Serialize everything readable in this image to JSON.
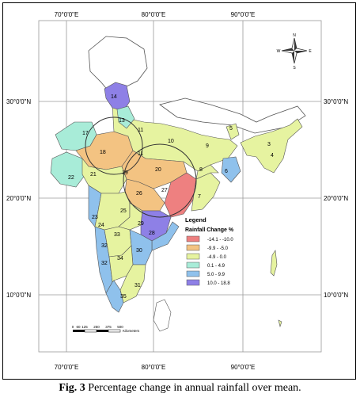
{
  "figure": {
    "caption_label": "Fig. 3",
    "caption_text": "Percentage change in annual rainfall over mean."
  },
  "map": {
    "longitude_labels_top": [
      "70°0'0\"E",
      "80°0'0\"E",
      "90°0'0\"E"
    ],
    "longitude_labels_bottom": [
      "70°0'0\"E",
      "80°0'0\"E",
      "90°0'0\"E"
    ],
    "latitude_labels_left": [
      "30°0'0\"N",
      "20°0'0\"N",
      "10°0'0\"N"
    ],
    "latitude_labels_right": [
      "30°0'0\"N",
      "20°0'0\"N",
      "10°0'0\"N"
    ],
    "north_arrow": {
      "n": "N",
      "s": "S",
      "e": "E",
      "w": "W"
    },
    "scale_bar": {
      "ticks": [
        "0",
        "60",
        "125",
        "250",
        "375",
        "500"
      ],
      "unit": "Kilometers"
    },
    "legend": {
      "title": "Legend",
      "subtitle": "Rainfall Change %",
      "classes": [
        {
          "label": "-14.1 - -10.0",
          "color": "#ee8080"
        },
        {
          "label": "-9.9 - -5.0",
          "color": "#f3c382"
        },
        {
          "label": "-4.9 - 0.0",
          "color": "#e6f3a0"
        },
        {
          "label": "0.1 - 4.9",
          "color": "#a8ecd8"
        },
        {
          "label": "5.0 - 9.9",
          "color": "#8fc1ec"
        },
        {
          "label": "10.0 - 18.8",
          "color": "#8e80e6"
        }
      ]
    },
    "region_labels": [
      "1",
      "2",
      "3",
      "4",
      "5",
      "6",
      "7",
      "8",
      "9",
      "10",
      "11",
      "12",
      "13",
      "14",
      "15",
      "16",
      "17",
      "18",
      "19",
      "20",
      "21",
      "22",
      "23",
      "24",
      "25",
      "26",
      "27",
      "28",
      "29",
      "30",
      "31",
      "32",
      "33",
      "34",
      "35"
    ]
  }
}
